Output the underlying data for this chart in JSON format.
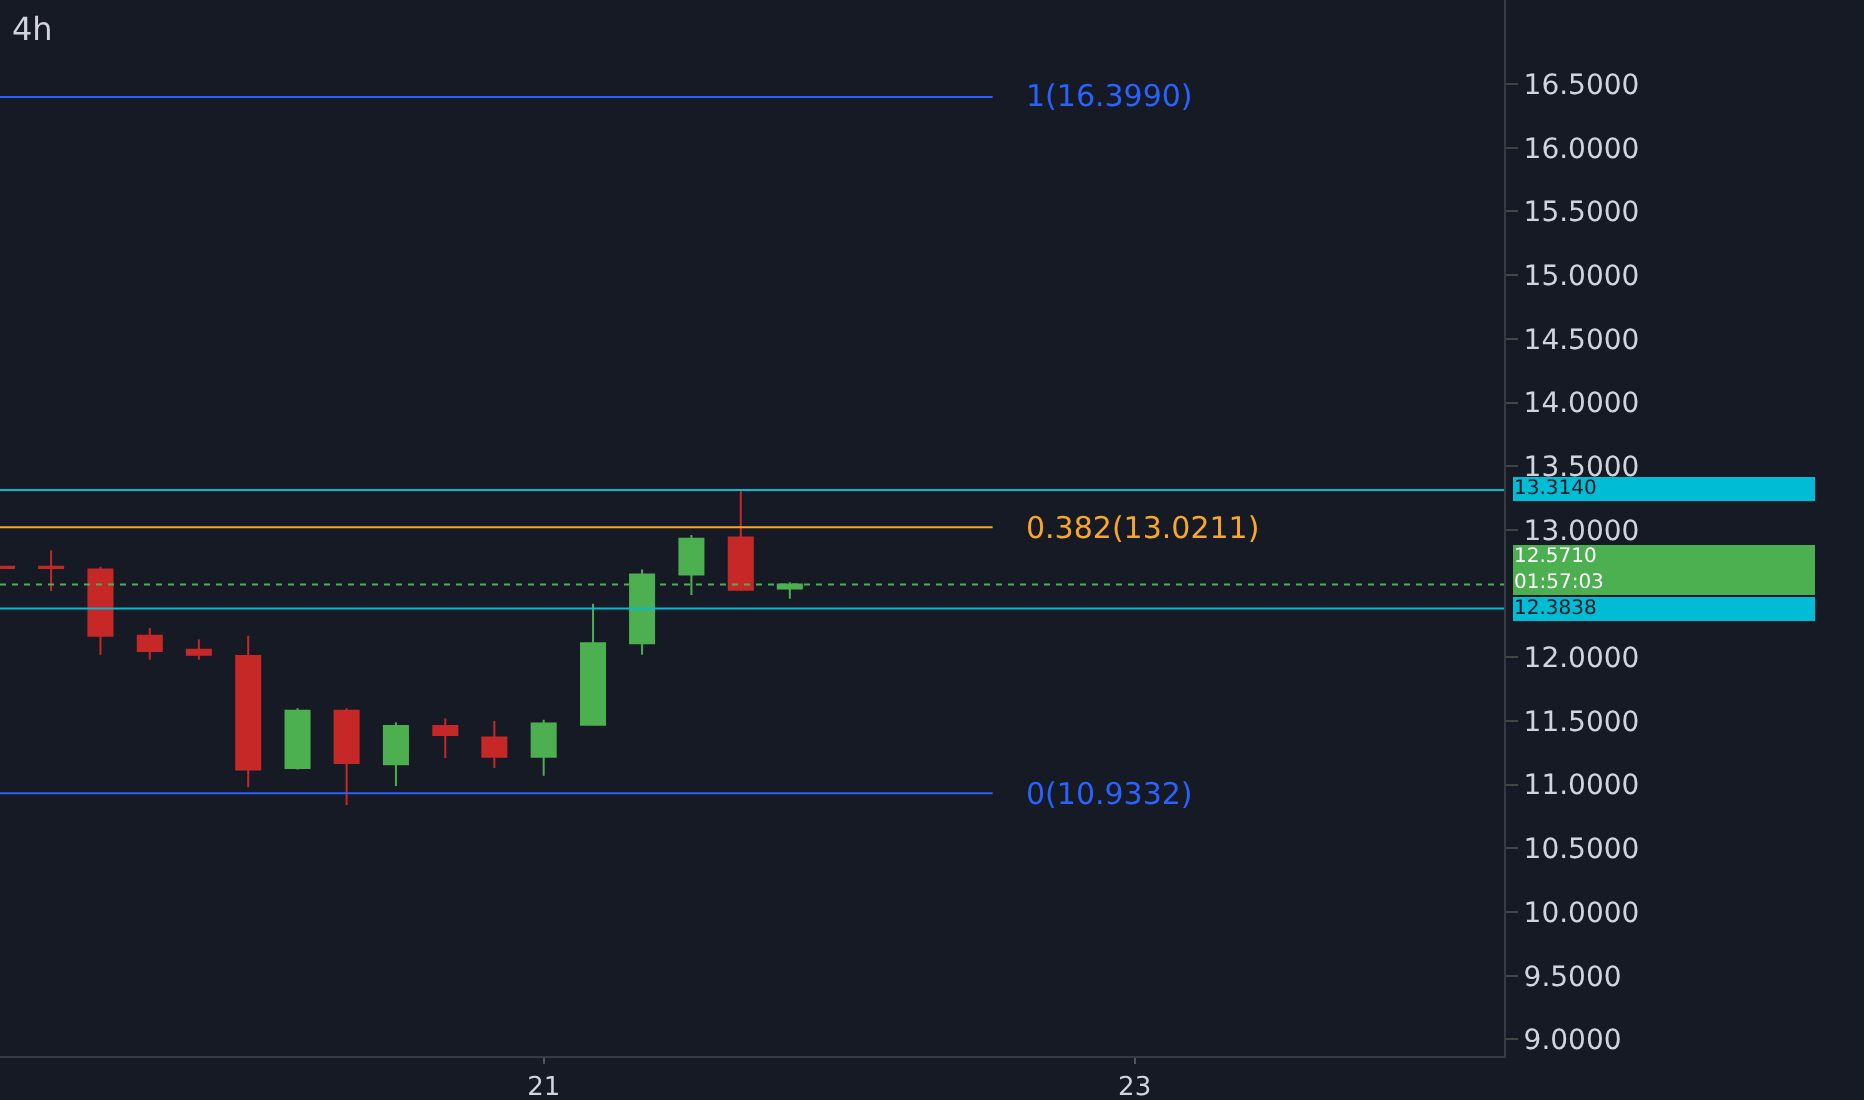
{
  "chart_data": {
    "type": "candlestick",
    "title": "4h",
    "x": [
      19.167,
      19.333,
      19.5,
      19.667,
      19.833,
      20,
      20.167,
      20.333,
      20.5,
      20.667,
      20.833,
      21,
      21.167,
      21.333,
      21.5,
      21.667,
      21.833
    ],
    "ohlc": [
      [
        12.71,
        12.71,
        12.7,
        12.7
      ],
      [
        12.71,
        12.84,
        12.52,
        12.7
      ],
      [
        12.69,
        12.71,
        12.02,
        12.17
      ],
      [
        12.17,
        12.23,
        11.98,
        12.05
      ],
      [
        12.06,
        12.14,
        11.98,
        12.02
      ],
      [
        12.01,
        12.17,
        10.98,
        11.12
      ],
      [
        11.13,
        11.6,
        11.12,
        11.58
      ],
      [
        11.58,
        11.6,
        10.84,
        11.17
      ],
      [
        11.16,
        11.49,
        10.99,
        11.46
      ],
      [
        11.46,
        11.52,
        11.21,
        11.39
      ],
      [
        11.37,
        11.5,
        11.13,
        11.22
      ],
      [
        11.22,
        11.51,
        11.07,
        11.48
      ],
      [
        11.47,
        12.42,
        11.47,
        12.11
      ],
      [
        12.11,
        12.69,
        12.02,
        12.65
      ],
      [
        12.65,
        12.96,
        12.49,
        12.93
      ],
      [
        12.94,
        13.31,
        12.52,
        12.53
      ],
      [
        12.54,
        12.59,
        12.46,
        12.571
      ]
    ],
    "xlim": [
      19.16,
      24.25
    ],
    "xticks": [
      21,
      23
    ],
    "ylim": [
      8.87,
      17.16
    ],
    "yticks": [
      {
        "value": 9,
        "label": "9.0000"
      },
      {
        "value": 9.5,
        "label": "9.5000"
      },
      {
        "value": 10,
        "label": "10.0000"
      },
      {
        "value": 10.5,
        "label": "10.5000"
      },
      {
        "value": 11,
        "label": "11.0000"
      },
      {
        "value": 11.5,
        "label": "11.5000"
      },
      {
        "value": 12,
        "label": "12.0000"
      },
      {
        "value": 13,
        "label": "13.0000"
      },
      {
        "value": 13.5,
        "label": "13.5000"
      },
      {
        "value": 14,
        "label": "14.0000"
      },
      {
        "value": 14.5,
        "label": "14.5000"
      },
      {
        "value": 15,
        "label": "15.0000"
      },
      {
        "value": 15.5,
        "label": "15.5000"
      },
      {
        "value": 16,
        "label": "16.0000"
      },
      {
        "value": 16.5,
        "label": "16.5000"
      }
    ],
    "ref_lines": [
      {
        "axis": "y",
        "value": 16.399,
        "label": "1(16.3990)",
        "color": "#2962ff"
      },
      {
        "axis": "y",
        "value": 13.0211,
        "label": "0.382(13.0211)",
        "color": "#f9a825"
      },
      {
        "axis": "y",
        "value": 10.9332,
        "label": "0(10.9332)",
        "color": "#2962ff"
      },
      {
        "axis": "y",
        "value": 13.314,
        "label": "13.3140",
        "color": "#00bcd4"
      },
      {
        "axis": "y",
        "value": 12.3838,
        "label": "12.3838",
        "color": "#00bcd4"
      },
      {
        "axis": "y",
        "value": 12.571,
        "label": "12.5710",
        "color": "#4caf50",
        "line_style": "dotted"
      }
    ],
    "annotations": [
      "01:57:03"
    ],
    "grid": false
  }
}
